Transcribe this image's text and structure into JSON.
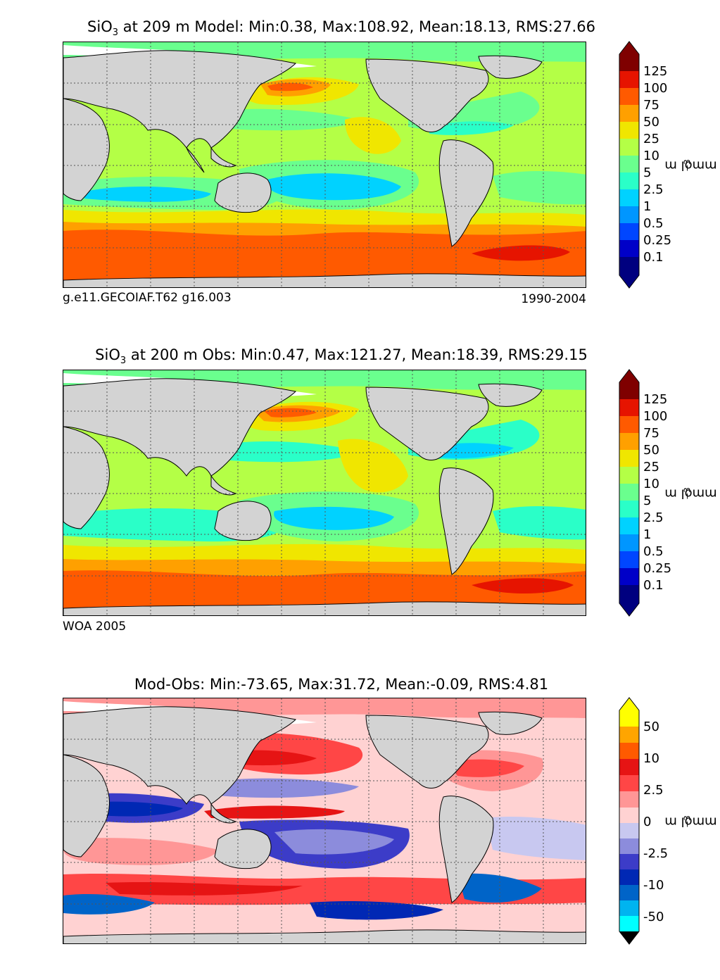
{
  "colors": {
    "land": "#d3d3d3",
    "ice": "#ffffff",
    "grid": "#555555",
    "abs_scale": [
      "#00007f",
      "#0000c8",
      "#0046ff",
      "#0096ff",
      "#00d2ff",
      "#2affc8",
      "#6aff8e",
      "#b4ff46",
      "#f0e600",
      "#ffa000",
      "#ff5a00",
      "#e61400",
      "#7f0000"
    ],
    "diff_scale": [
      "#00ffff",
      "#00b4f0",
      "#0064c8",
      "#0028b4",
      "#3c3cc8",
      "#8c8cdc",
      "#c8c8f0",
      "#ffd2d2",
      "#ff9696",
      "#ff4646",
      "#e61414",
      "#ff5a00",
      "#ffa500",
      "#ffff00"
    ]
  },
  "panels": [
    {
      "title_prefix": "SiO",
      "title_sub": "3",
      "title_suffix": " at 209 m Model: Min:0.38, Max:108.92, Mean:18.13, RMS:27.66",
      "source_left": "g.e11.GECOIAF.T62 g16.003",
      "source_right": "1990-2004",
      "colorbar_ticks": [
        "125",
        "100",
        "75",
        "50",
        "25",
        "10",
        "5",
        "2.5",
        "1",
        "0.5",
        "0.25",
        "0.1"
      ],
      "units_base": "mmol m",
      "units_exp": "−3"
    },
    {
      "title_prefix": "SiO",
      "title_sub": "3",
      "title_suffix": " at 200 m Obs: Min:0.47, Max:121.27, Mean:18.39, RMS:29.15",
      "source_left": "WOA 2005",
      "source_right": "",
      "colorbar_ticks": [
        "125",
        "100",
        "75",
        "50",
        "25",
        "10",
        "5",
        "2.5",
        "1",
        "0.5",
        "0.25",
        "0.1"
      ],
      "units_base": "mmol m",
      "units_exp": "−3"
    },
    {
      "title": "Mod-Obs: Min:-73.65, Max:31.72, Mean:-0.09, RMS:4.81",
      "colorbar_ticks": [
        "50",
        "10",
        "2.5",
        "0",
        "-2.5",
        "-10",
        "-50"
      ],
      "units_base": "mmol m",
      "units_exp": "−3"
    }
  ]
}
